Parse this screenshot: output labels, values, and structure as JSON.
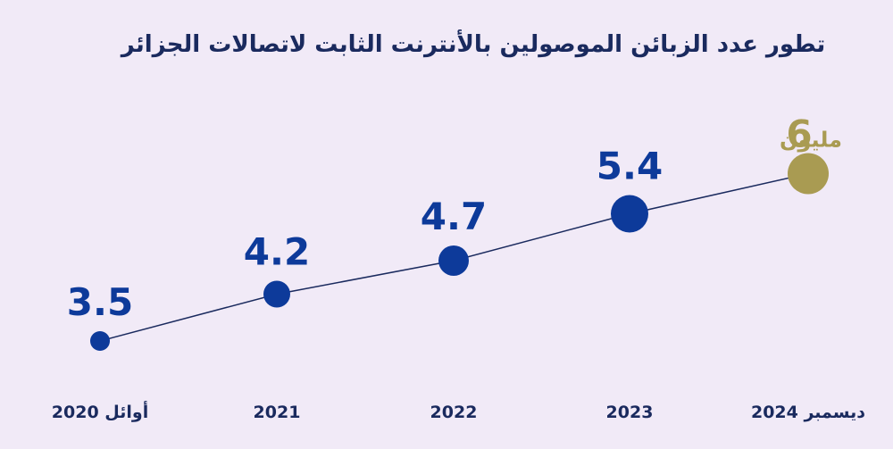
{
  "chart_data": {
    "type": "line",
    "title": "تطور عدد الزبائن الموصولين بالأنترنت الثابت لاتصالات الجزائر",
    "categories": [
      "أوائل 2020",
      "2021",
      "2022",
      "2023",
      "ديسمبر 2024"
    ],
    "values": [
      3.5,
      4.2,
      4.7,
      5.4,
      6
    ],
    "value_labels": [
      "3.5",
      "4.2",
      "4.7",
      "5.4",
      "6"
    ],
    "highlight_unit": "مليون",
    "xlabel": "",
    "ylabel": "",
    "ylim": [
      3.0,
      6.5
    ],
    "grid": false,
    "legend": "none"
  },
  "colors": {
    "background": "#f1eaf7",
    "series": "#0d3a9a",
    "highlight": "#a99b52",
    "line": "#1a2a5e",
    "title": "#1a2a5e"
  }
}
